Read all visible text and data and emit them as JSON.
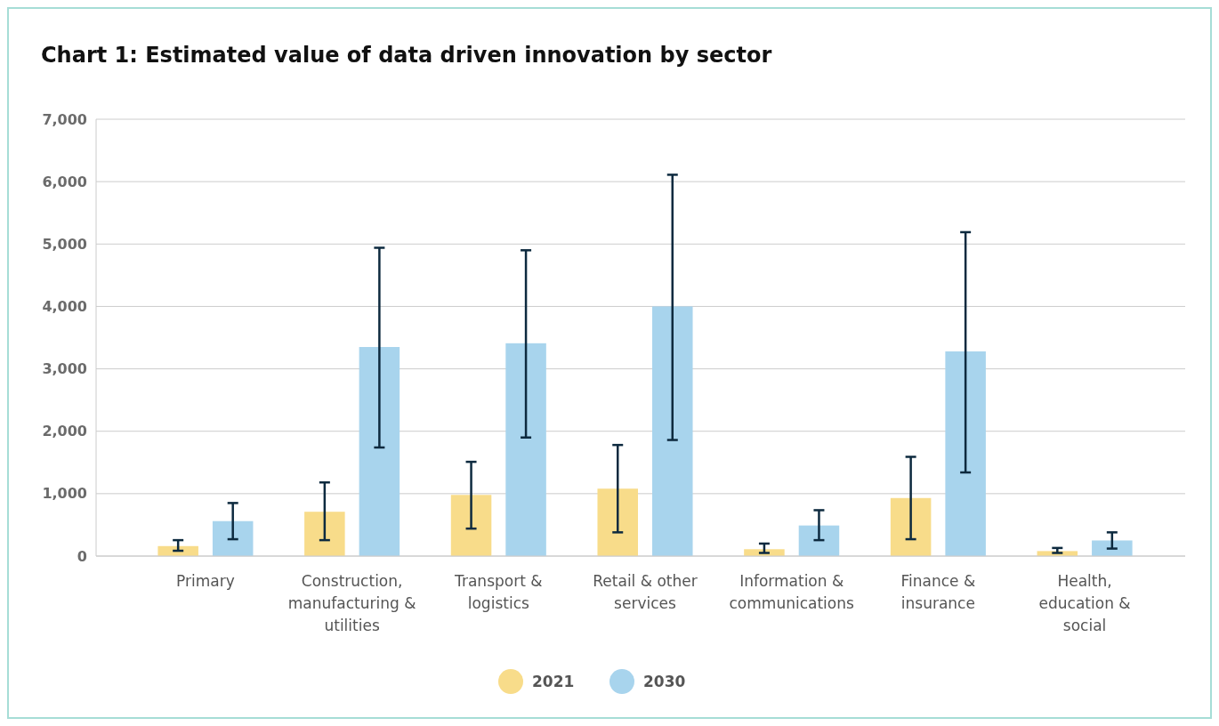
{
  "chart_data": {
    "type": "bar",
    "title": "Chart 1: Estimated value of data driven innovation by sector",
    "categories": [
      "Primary",
      "Construction, manufacturing & utilities",
      "Transport & logistics",
      "Retail & other services",
      "Information & communications",
      "Finance & insurance",
      "Health, education & social"
    ],
    "series": [
      {
        "name": "2021",
        "color": "#f8dc8a",
        "values": [
          160,
          710,
          980,
          1080,
          110,
          930,
          80
        ],
        "errors": [
          [
            85,
            255
          ],
          [
            255,
            1180
          ],
          [
            440,
            1510
          ],
          [
            380,
            1780
          ],
          [
            50,
            200
          ],
          [
            270,
            1590
          ],
          [
            50,
            130
          ]
        ]
      },
      {
        "name": "2030",
        "color": "#a8d4ed",
        "values": [
          560,
          3350,
          3410,
          4000,
          490,
          3280,
          250
        ],
        "errors": [
          [
            270,
            850
          ],
          [
            1740,
            4940
          ],
          [
            1900,
            4900
          ],
          [
            1860,
            6110
          ],
          [
            255,
            735
          ],
          [
            1340,
            5190
          ],
          [
            120,
            380
          ]
        ]
      }
    ],
    "ylim": [
      0,
      7000
    ],
    "yticks": [
      {
        "value": 0,
        "label": "0"
      },
      {
        "value": 1000,
        "label": "1,000"
      },
      {
        "value": 2000,
        "label": "2,000"
      },
      {
        "value": 3000,
        "label": "3,000"
      },
      {
        "value": 4000,
        "label": "4,000"
      },
      {
        "value": 5000,
        "label": "5,000"
      },
      {
        "value": 6000,
        "label": "6,000"
      },
      {
        "value": 7000,
        "label": "7,000"
      }
    ],
    "grid": "y",
    "legend": "bottom"
  }
}
